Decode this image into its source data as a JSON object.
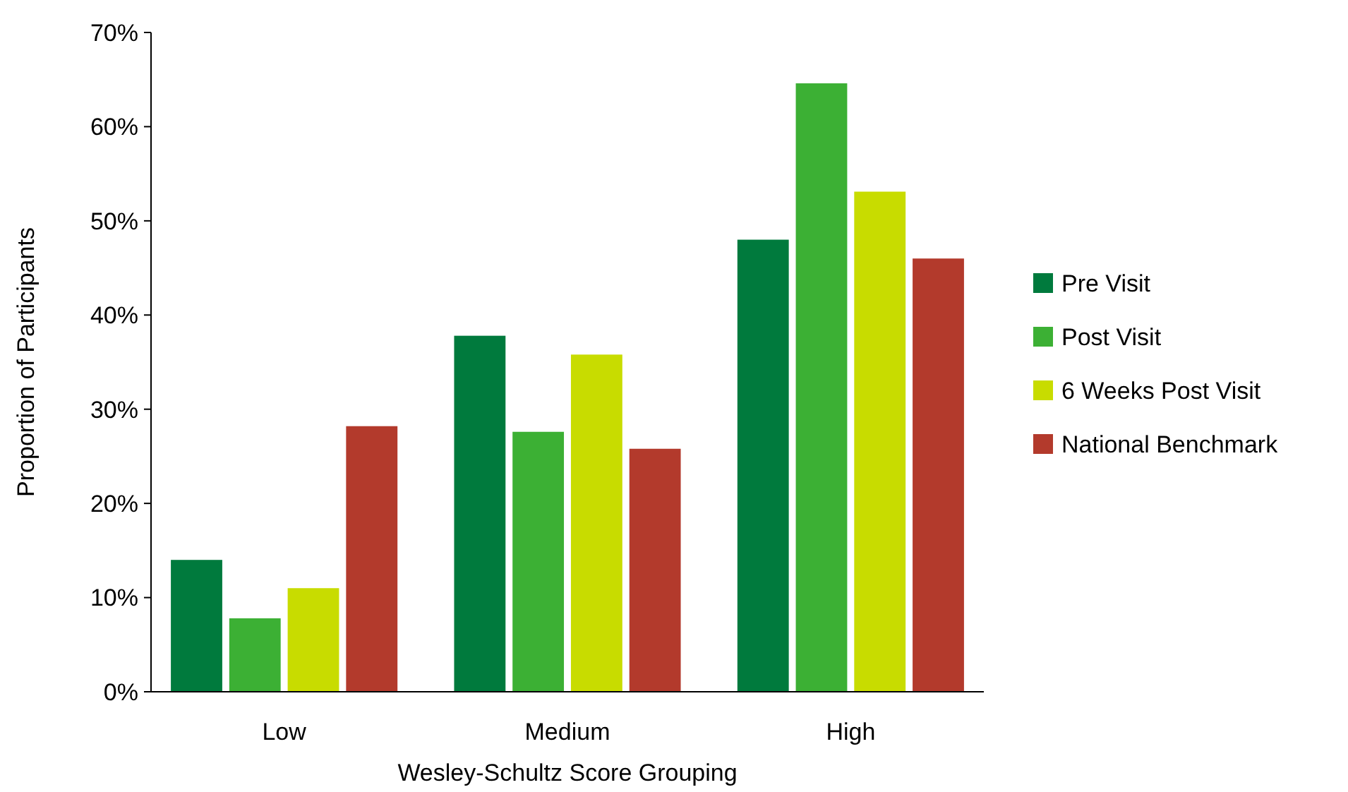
{
  "chart_data": {
    "type": "bar",
    "xlabel": "Wesley-Schultz Score Grouping",
    "ylabel": "Proportion of Participants",
    "categories": [
      "Low",
      "Medium",
      "High"
    ],
    "series": [
      {
        "name": "Pre Visit",
        "color": "#007a3d",
        "values": [
          14,
          37.8,
          48
        ]
      },
      {
        "name": "Post Visit",
        "color": "#3cb034",
        "values": [
          7.8,
          27.6,
          64.6
        ]
      },
      {
        "name": "6 Weeks Post Visit",
        "color": "#c8dc00",
        "values": [
          11,
          35.8,
          53.1
        ]
      },
      {
        "name": "National Benchmark",
        "color": "#b33a2c",
        "values": [
          28.2,
          25.8,
          46
        ]
      }
    ],
    "ylim": [
      0,
      70
    ],
    "yticks": [
      {
        "value": 0,
        "label": "0%"
      },
      {
        "value": 10,
        "label": "10%"
      },
      {
        "value": 20,
        "label": "20%"
      },
      {
        "value": 30,
        "label": "30%"
      },
      {
        "value": 40,
        "label": "40%"
      },
      {
        "value": 50,
        "label": "50%"
      },
      {
        "value": 60,
        "label": "60%"
      },
      {
        "value": 70,
        "label": "70%"
      }
    ],
    "grid": false,
    "legend": "right"
  }
}
